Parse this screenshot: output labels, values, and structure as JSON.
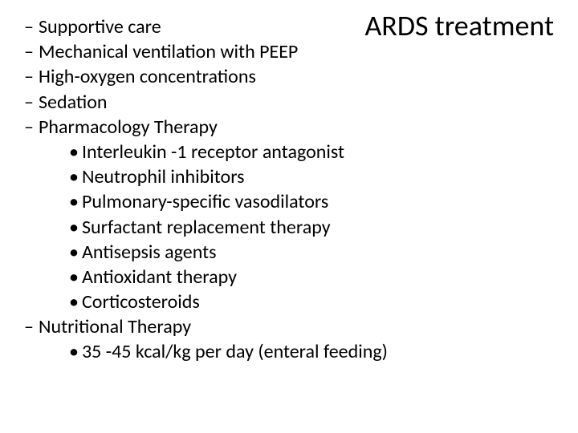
{
  "title": "ARDS treatment",
  "items": [
    {
      "level": 1,
      "marker": "–",
      "text": "Supportive care"
    },
    {
      "level": 1,
      "marker": "–",
      "text": "Mechanical ventilation with PEEP"
    },
    {
      "level": 1,
      "marker": "–",
      "text": "High-oxygen concentrations"
    },
    {
      "level": 1,
      "marker": "–",
      "text": "Sedation"
    },
    {
      "level": 1,
      "marker": "–",
      "text": "Pharmacology Therapy"
    },
    {
      "level": 2,
      "marker": "•",
      "text": "Interleukin -1 receptor antagonist"
    },
    {
      "level": 2,
      "marker": "•",
      "text": "Neutrophil inhibitors"
    },
    {
      "level": 2,
      "marker": "•",
      "text": "Pulmonary-specific vasodilators"
    },
    {
      "level": 2,
      "marker": "•",
      "text": "Surfactant replacement therapy"
    },
    {
      "level": 2,
      "marker": "•",
      "text": "Antisepsis agents"
    },
    {
      "level": 2,
      "marker": "•",
      "text": "Antioxidant therapy"
    },
    {
      "level": 2,
      "marker": "•",
      "text": "Corticosteroids"
    },
    {
      "level": 1,
      "marker": "–",
      "text": "Nutritional Therapy"
    },
    {
      "level": 2,
      "marker": "•",
      "text": "35 -45 kcal/kg per day (enteral feeding)"
    }
  ],
  "style": {
    "background_color": "#ffffff",
    "text_color": "#000000",
    "title_fontsize": 36,
    "body_fontsize": 24,
    "font_family": "Calibri"
  }
}
